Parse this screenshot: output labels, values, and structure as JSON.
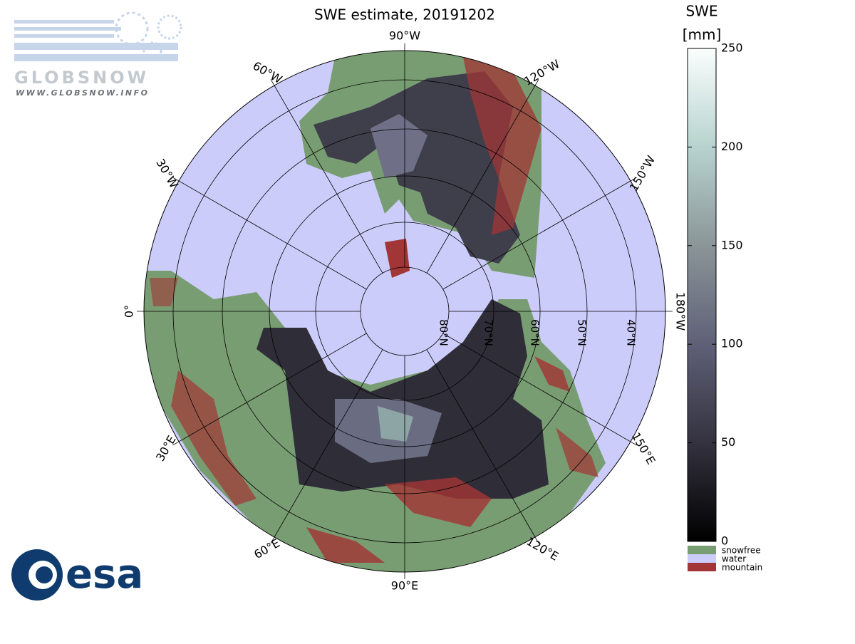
{
  "header": {
    "title": "SWE estimate, 20191202"
  },
  "map": {
    "lon_labels": [
      "0°",
      "30°E",
      "60°E",
      "90°E",
      "120°E",
      "150°E",
      "180°W",
      "150°W",
      "120°W",
      "90°W",
      "60°W",
      "30°W"
    ],
    "lat_labels": [
      "80°N",
      "70°N",
      "60°N",
      "50°N",
      "40°N"
    ]
  },
  "colorbar": {
    "title": "SWE",
    "unit": "[mm]",
    "lim": [
      0,
      250
    ],
    "ticks": [
      0,
      50,
      100,
      150,
      200,
      250
    ],
    "classes": [
      {
        "label": "snowfree",
        "color": "#799d72"
      },
      {
        "label": "water",
        "color": "#ccccfb"
      },
      {
        "label": "mountain",
        "color": "#a23535"
      }
    ]
  },
  "logos": {
    "globsnow": "GLOBSNOW",
    "globsnow_url": "WWW.GLOBSNOW.INFO",
    "esa": "esa"
  }
}
